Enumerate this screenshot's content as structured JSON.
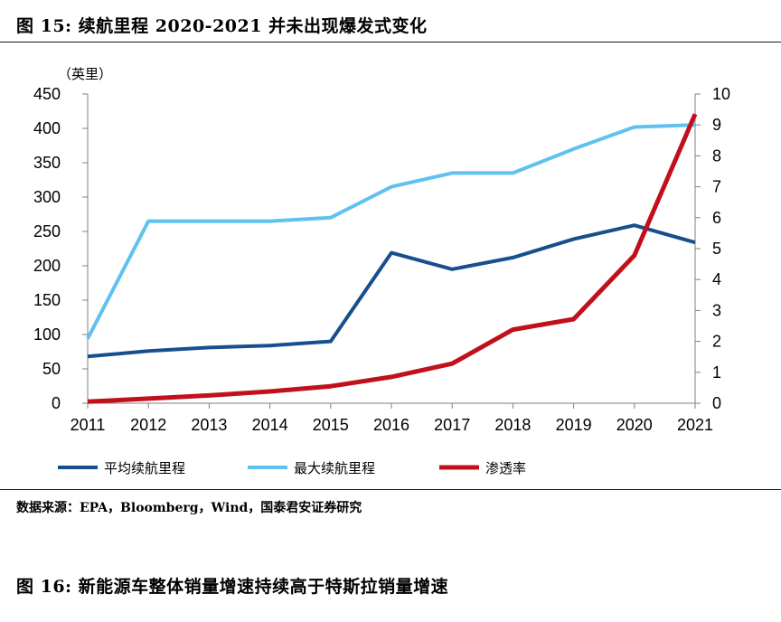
{
  "figure_title": "图 15:  续航里程 2020-2021 并未出现爆发式变化",
  "source_note": "数据来源：EPA，Bloomberg，Wind，国泰君安证券研究",
  "next_figure_title": "图 16:  新能源车整体销量增速持续高于特斯拉销量增速",
  "chart_data": {
    "type": "line",
    "title": "续航里程 2020-2021 并未出现爆发式变化",
    "y_unit_label": "（英里）",
    "x": [
      2011,
      2012,
      2013,
      2014,
      2015,
      2016,
      2017,
      2018,
      2019,
      2020,
      2021
    ],
    "x_ticks": [
      "2011",
      "2012",
      "2013",
      "2014",
      "2015",
      "2016",
      "2017",
      "2018",
      "2019",
      "2020",
      "2021"
    ],
    "ylim_left": [
      0,
      450
    ],
    "yticks_left": [
      "0",
      "50",
      "100",
      "150",
      "200",
      "250",
      "300",
      "350",
      "400",
      "450"
    ],
    "ylim_right": [
      0,
      10
    ],
    "yticks_right": [
      "0",
      "1",
      "2",
      "3",
      "4",
      "5",
      "6",
      "7",
      "8",
      "9",
      "10"
    ],
    "grid": false,
    "legend_position": "bottom",
    "series": [
      {
        "name": "平均续航里程",
        "axis": "left",
        "color": "#174f8e",
        "values": [
          68,
          76,
          81,
          84,
          90,
          219,
          195,
          212,
          239,
          259,
          234
        ]
      },
      {
        "name": "最大续航里程",
        "axis": "left",
        "color": "#5ec1f0",
        "values": [
          94,
          265,
          265,
          265,
          270,
          315,
          335,
          335,
          370,
          402,
          405
        ]
      },
      {
        "name": "渗透率",
        "axis": "right",
        "color": "#c0101c",
        "values": [
          0.05,
          0.15,
          0.25,
          0.38,
          0.55,
          0.85,
          1.28,
          2.38,
          2.72,
          4.78,
          9.35
        ]
      }
    ]
  }
}
